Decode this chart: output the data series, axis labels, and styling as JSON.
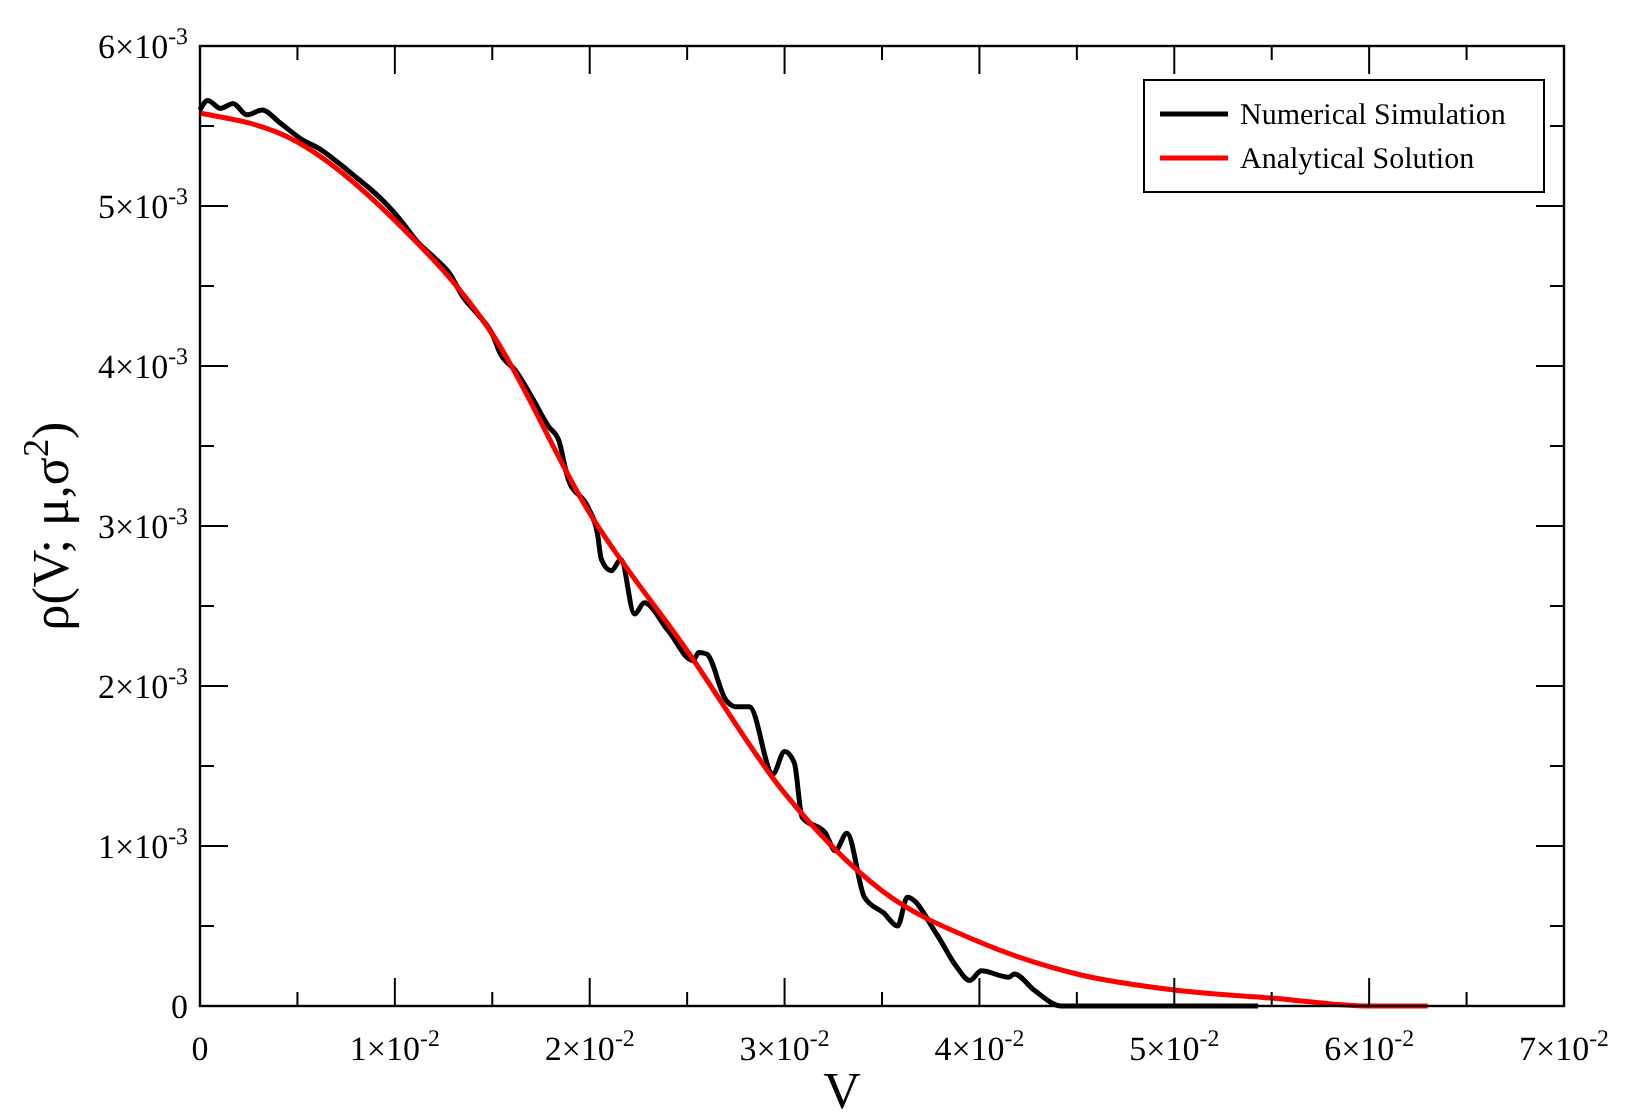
{
  "chart_data": {
    "type": "line",
    "xlabel": "V",
    "ylabel": "ρ(V; μ,σ$^{2}$)",
    "xlim": [
      0,
      0.07
    ],
    "ylim": [
      0,
      0.006
    ],
    "xticks": [
      0,
      {
        "value": 0.005,
        "label": null
      },
      {
        "value": 0.01,
        "label": "1×10$^{-2}$"
      },
      {
        "value": 0.015,
        "label": null
      },
      {
        "value": 0.02,
        "label": "2×10$^{-2}$"
      },
      {
        "value": 0.025,
        "label": null
      },
      {
        "value": 0.03,
        "label": "3×10$^{-2}$"
      },
      {
        "value": 0.035,
        "label": null
      },
      {
        "value": 0.04,
        "label": "4×10$^{-2}$"
      },
      {
        "value": 0.045,
        "label": null
      },
      {
        "value": 0.05,
        "label": "5×10$^{-2}$"
      },
      {
        "value": 0.055,
        "label": null
      },
      {
        "value": 0.06,
        "label": "6×10$^{-2}$"
      },
      {
        "value": 0.065,
        "label": null
      },
      {
        "value": 0.07,
        "label": "7×10$^{-2}$"
      }
    ],
    "yticks": [
      0,
      {
        "value": 0.0005,
        "label": null
      },
      {
        "value": 0.001,
        "label": "1×10$^{-3}$"
      },
      {
        "value": 0.0015,
        "label": null
      },
      {
        "value": 0.002,
        "label": "2×10$^{-3}$"
      },
      {
        "value": 0.0025,
        "label": null
      },
      {
        "value": 0.003,
        "label": "3×10$^{-3}$"
      },
      {
        "value": 0.0035,
        "label": null
      },
      {
        "value": 0.004,
        "label": "4×10$^{-3}$"
      },
      {
        "value": 0.0045,
        "label": null
      },
      {
        "value": 0.005,
        "label": "5×10$^{-3}$"
      },
      {
        "value": 0.0055,
        "label": null
      },
      {
        "value": 0.006,
        "label": "6×10$^{-3}$"
      }
    ],
    "grid": false,
    "legend": "top right",
    "marker": "none",
    "line_style": "solid",
    "series": [
      {
        "name": "Numerical Simulation",
        "color": "#000000",
        "x": [
          0,
          0.0004,
          0.00105,
          0.0017,
          0.0024,
          0.0032,
          0.0041,
          0.0053,
          0.0061,
          0.0071,
          0.0081,
          0.0088,
          0.0095,
          0.0103,
          0.0112,
          0.012,
          0.0128,
          0.0135,
          0.0142,
          0.015,
          0.0154,
          0.0162,
          0.0171,
          0.0179,
          0.0184,
          0.0189,
          0.0199,
          0.0204,
          0.0206,
          0.0211,
          0.0216,
          0.0223,
          0.0228,
          0.024,
          0.0253,
          0.0256,
          0.026,
          0.027,
          0.0275,
          0.0282,
          0.0294,
          0.03,
          0.0305,
          0.0309,
          0.0321,
          0.0326,
          0.0332,
          0.0341,
          0.0351,
          0.0358,
          0.0363,
          0.0378,
          0.0388,
          0.0395,
          0.0401,
          0.0415,
          0.0418,
          0.0428,
          0.0442,
          0.0482,
          0.0543
        ],
        "values": [
          0.0056,
          0.00566,
          0.00561,
          0.00564,
          0.00557,
          0.0056,
          0.00552,
          0.00541,
          0.00536,
          0.00527,
          0.00517,
          0.0051,
          0.00502,
          0.00491,
          0.00477,
          0.00468,
          0.00458,
          0.00443,
          0.00433,
          0.0042,
          0.00408,
          0.00397,
          0.00379,
          0.00362,
          0.00354,
          0.00329,
          0.00312,
          0.00295,
          0.00279,
          0.00272,
          0.00279,
          0.00245,
          0.00252,
          0.00235,
          0.00216,
          0.00221,
          0.0022,
          0.00191,
          0.00187,
          0.00187,
          0.00145,
          0.00159,
          0.00152,
          0.00118,
          0.00108,
          0.00097,
          0.00108,
          0.00068,
          0.00058,
          0.0005,
          0.00068,
          0.00045,
          0.00025,
          0.00016,
          0.00022,
          0.00018,
          0.0002,
          0.0001,
          0,
          0,
          0
        ]
      },
      {
        "name": "Analytical Solution",
        "color": "#ff0000",
        "x": [
          0,
          0.005,
          0.01,
          0.015,
          0.02,
          0.025,
          0.03,
          0.035,
          0.04,
          0.045,
          0.05,
          0.055,
          0.06,
          0.063
        ],
        "values": [
          0.00558,
          0.0054,
          0.00491,
          0.0042,
          0.00308,
          0.00222,
          0.00133,
          0.00072,
          0.0004,
          0.0002,
          0.0001,
          5e-05,
          0,
          0
        ]
      }
    ]
  }
}
